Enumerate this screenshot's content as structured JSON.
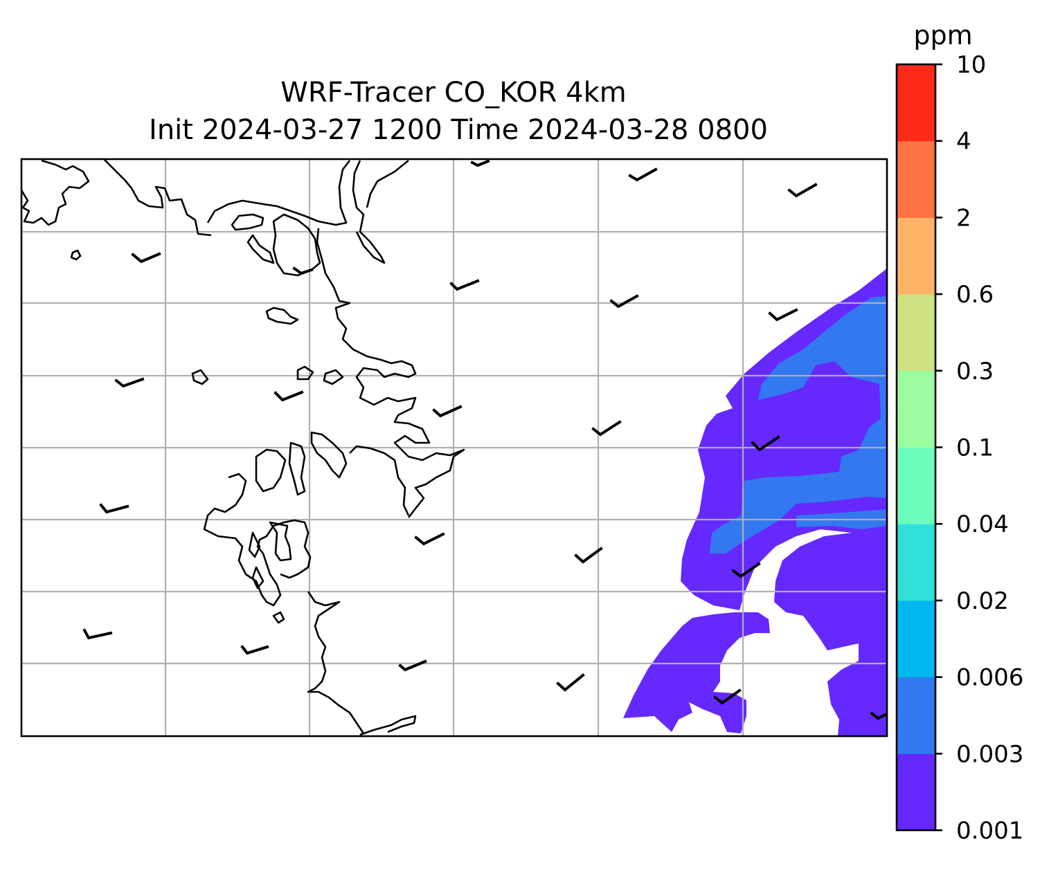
{
  "title": {
    "line1": "WRF-Tracer CO_KOR 4km",
    "line2": "Init 2024-03-27 1200 Time 2024-03-28 0800"
  },
  "colorbar": {
    "unit": "ppm",
    "ticks": [
      "0.001",
      "0.003",
      "0.006",
      "0.02",
      "0.04",
      "0.1",
      "0.3",
      "0.6",
      "2",
      "4",
      "10"
    ],
    "colors": [
      "#6528fd",
      "#3378f0",
      "#00b7ef",
      "#2fe0d8",
      "#6cfdbc",
      "#9cfca0",
      "#cde283",
      "#fdb366",
      "#fd7341",
      "#fd2a18"
    ]
  },
  "map": {
    "coastline_color": "#000000",
    "gridline_color": "#b0b0b0",
    "wind_barbs": "calm-to-light winds from the west-southwest"
  }
}
